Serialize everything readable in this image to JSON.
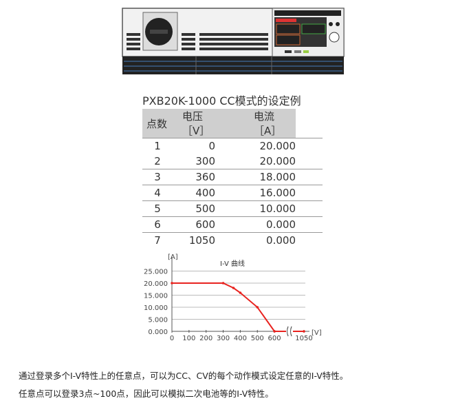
{
  "device_image": {
    "alt_label": "PXB20K-1000"
  },
  "caption": "PXB20K-1000 CC模式的设定例",
  "table": {
    "headers": [
      "点数",
      "电压［V］",
      "电流［A］"
    ],
    "rows": [
      [
        "1",
        "0",
        "20.000"
      ],
      [
        "2",
        "300",
        "20.000"
      ],
      [
        "3",
        "360",
        "18.000"
      ],
      [
        "4",
        "400",
        "16.000"
      ],
      [
        "5",
        "500",
        "10.000"
      ],
      [
        "6",
        "600",
        "0.000"
      ],
      [
        "7",
        "1050",
        "0.000"
      ]
    ]
  },
  "chart_data": {
    "type": "line",
    "title": "I-V 曲线",
    "xlabel": "[V]",
    "ylabel": "[A]",
    "x_ticks": [
      "0",
      "100",
      "200",
      "300",
      "400",
      "500",
      "600",
      "1050"
    ],
    "y_ticks": [
      "0.000",
      "5.000",
      "10.000",
      "15.000",
      "20.000",
      "25.000"
    ],
    "ylim": [
      0,
      25
    ],
    "axis_break": "between 600 and 1050",
    "grid": "horizontal",
    "line_color": "#e8231f",
    "x": [
      0,
      300,
      360,
      400,
      500,
      600,
      1050
    ],
    "y": [
      20,
      20,
      18,
      16,
      10,
      0,
      0
    ]
  },
  "paragraphs": [
    "通过登录多个I-V特性上的任意点，可以为CC、CV的每个动作模式设定任意的I-V特性。",
    "任意点可以登录3点~100点，因此可以模拟二次电池等的I-V特性。"
  ]
}
